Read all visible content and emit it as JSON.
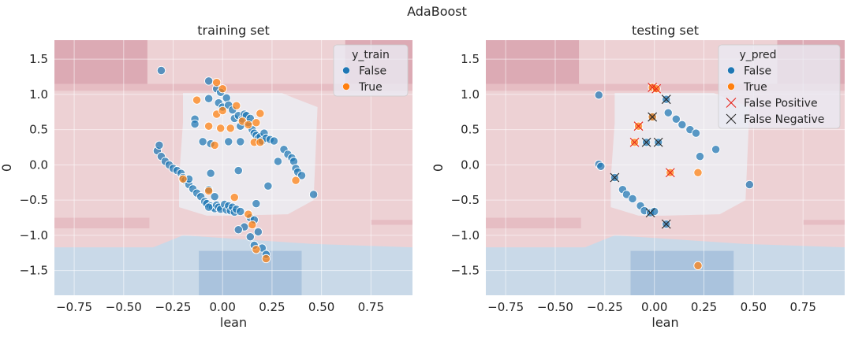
{
  "figure": {
    "suptitle": "AdaBoost"
  },
  "colors": {
    "false": "#1f77b4",
    "true": "#ff7f0e",
    "fp_marker": "#e8231a",
    "fn_marker": "#262626",
    "region_red_light": "#edd1d4",
    "region_red_mid": "#e6bdc3",
    "region_red_dark": "#dcaab4",
    "region_white": "#ece9ee",
    "region_blue_light": "#c9d9e8",
    "region_blue_dark": "#aac3dd",
    "grid": "#ffffff"
  },
  "chart_data": [
    {
      "type": "scatter",
      "title": "training set",
      "xlabel": "lean",
      "ylabel": "0",
      "xlim": [
        -0.85,
        0.96
      ],
      "ylim": [
        -1.85,
        1.77
      ],
      "xticks": [
        -0.75,
        -0.5,
        -0.25,
        0.0,
        0.25,
        0.5,
        0.75
      ],
      "xtick_labels": [
        "−0.75",
        "−0.50",
        "−0.25",
        "0.00",
        "0.25",
        "0.50",
        "0.75"
      ],
      "yticks": [
        -1.5,
        -1.0,
        -0.5,
        0.0,
        0.5,
        1.0,
        1.5
      ],
      "ytick_labels": [
        "−1.5",
        "−1.0",
        "−0.5",
        "0.0",
        "0.5",
        "1.0",
        "1.5"
      ],
      "grid": true,
      "background": "decision regions (red = True side, blue = False side)",
      "legend": {
        "title": "y_train",
        "placement": "upper right",
        "entries": [
          {
            "label": "False",
            "marker": "circle",
            "color_key": "false"
          },
          {
            "label": "True",
            "marker": "circle",
            "color_key": "true"
          }
        ]
      },
      "series": [
        {
          "name": "False",
          "points": [
            [
              -0.31,
              1.34
            ],
            [
              -0.07,
              1.19
            ],
            [
              -0.07,
              0.94
            ],
            [
              -0.03,
              1.08
            ],
            [
              -0.01,
              1.03
            ],
            [
              -0.02,
              0.88
            ],
            [
              0.0,
              0.82
            ],
            [
              0.02,
              0.95
            ],
            [
              0.03,
              0.85
            ],
            [
              0.05,
              0.78
            ],
            [
              0.06,
              0.66
            ],
            [
              0.08,
              0.7
            ],
            [
              0.09,
              0.55
            ],
            [
              0.1,
              0.65
            ],
            [
              0.11,
              0.72
            ],
            [
              0.12,
              0.7
            ],
            [
              0.13,
              0.6
            ],
            [
              0.14,
              0.66
            ],
            [
              0.15,
              0.5
            ],
            [
              0.16,
              0.45
            ],
            [
              0.17,
              0.42
            ],
            [
              0.18,
              0.38
            ],
            [
              0.19,
              0.4
            ],
            [
              0.2,
              0.34
            ],
            [
              0.21,
              0.45
            ],
            [
              0.22,
              0.38
            ],
            [
              0.24,
              0.36
            ],
            [
              0.26,
              0.34
            ],
            [
              0.28,
              0.05
            ],
            [
              0.31,
              0.22
            ],
            [
              0.33,
              0.15
            ],
            [
              0.35,
              0.1
            ],
            [
              0.36,
              0.05
            ],
            [
              0.37,
              -0.05
            ],
            [
              0.38,
              -0.1
            ],
            [
              0.4,
              -0.15
            ],
            [
              0.46,
              -0.42
            ],
            [
              -0.14,
              0.65
            ],
            [
              -0.14,
              0.58
            ],
            [
              -0.1,
              0.33
            ],
            [
              -0.06,
              0.3
            ],
            [
              0.03,
              0.33
            ],
            [
              0.09,
              0.33
            ],
            [
              0.08,
              -0.08
            ],
            [
              0.23,
              -0.3
            ],
            [
              0.17,
              -0.55
            ],
            [
              0.14,
              -0.75
            ],
            [
              0.16,
              -0.78
            ],
            [
              0.11,
              -0.88
            ],
            [
              0.08,
              -0.92
            ],
            [
              0.18,
              -0.95
            ],
            [
              0.14,
              -1.02
            ],
            [
              0.16,
              -1.14
            ],
            [
              0.2,
              -1.18
            ],
            [
              0.22,
              -1.27
            ],
            [
              -0.33,
              0.2
            ],
            [
              -0.32,
              0.28
            ],
            [
              -0.31,
              0.12
            ],
            [
              -0.29,
              0.05
            ],
            [
              -0.27,
              0.0
            ],
            [
              -0.25,
              -0.05
            ],
            [
              -0.23,
              -0.08
            ],
            [
              -0.21,
              -0.12
            ],
            [
              -0.2,
              -0.18
            ],
            [
              -0.19,
              -0.22
            ],
            [
              -0.17,
              -0.28
            ],
            [
              -0.15,
              -0.34
            ],
            [
              -0.13,
              -0.4
            ],
            [
              -0.11,
              -0.45
            ],
            [
              -0.09,
              -0.52
            ],
            [
              -0.08,
              -0.55
            ],
            [
              -0.06,
              -0.58
            ],
            [
              -0.05,
              -0.6
            ],
            [
              -0.04,
              -0.62
            ],
            [
              -0.03,
              -0.57
            ],
            [
              -0.02,
              -0.6
            ],
            [
              -0.01,
              -0.63
            ],
            [
              0.01,
              -0.56
            ],
            [
              0.02,
              -0.64
            ],
            [
              0.03,
              -0.58
            ],
            [
              0.04,
              -0.65
            ],
            [
              0.05,
              -0.6
            ],
            [
              0.06,
              -0.67
            ],
            [
              0.07,
              -0.63
            ],
            [
              0.09,
              -0.66
            ],
            [
              -0.07,
              -0.35
            ],
            [
              -0.04,
              -0.45
            ],
            [
              -0.17,
              -0.2
            ],
            [
              -0.06,
              -0.12
            ],
            [
              -0.07,
              -0.6
            ]
          ]
        },
        {
          "name": "True",
          "points": [
            [
              -0.03,
              1.17
            ],
            [
              0.0,
              1.08
            ],
            [
              -0.13,
              0.92
            ],
            [
              -0.03,
              0.72
            ],
            [
              -0.07,
              0.55
            ],
            [
              0.04,
              0.52
            ],
            [
              0.0,
              0.77
            ],
            [
              0.07,
              0.84
            ],
            [
              0.1,
              0.62
            ],
            [
              0.13,
              0.57
            ],
            [
              0.17,
              0.6
            ],
            [
              0.19,
              0.73
            ],
            [
              0.16,
              0.32
            ],
            [
              0.19,
              0.32
            ],
            [
              -0.01,
              0.52
            ],
            [
              -0.04,
              0.28
            ],
            [
              0.06,
              -0.46
            ],
            [
              0.13,
              -0.7
            ],
            [
              0.15,
              -0.85
            ],
            [
              0.17,
              -1.2
            ],
            [
              0.22,
              -1.33
            ],
            [
              0.37,
              -0.22
            ],
            [
              -0.07,
              -0.37
            ],
            [
              -0.2,
              -0.2
            ]
          ]
        }
      ]
    },
    {
      "type": "scatter",
      "title": "testing set",
      "xlabel": "lean",
      "ylabel": "0",
      "xlim": [
        -0.85,
        0.96
      ],
      "ylim": [
        -1.85,
        1.77
      ],
      "xticks": [
        -0.75,
        -0.5,
        -0.25,
        0.0,
        0.25,
        0.5,
        0.75
      ],
      "xtick_labels": [
        "−0.75",
        "−0.50",
        "−0.25",
        "0.00",
        "0.25",
        "0.50",
        "0.75"
      ],
      "yticks": [
        -1.5,
        -1.0,
        -0.5,
        0.0,
        0.5,
        1.0,
        1.5
      ],
      "ytick_labels": [
        "−1.5",
        "−1.0",
        "−0.5",
        "0.0",
        "0.5",
        "1.0",
        "1.5"
      ],
      "grid": true,
      "background": "decision regions (red = True side, blue = False side)",
      "legend": {
        "title": "y_pred",
        "placement": "upper right",
        "entries": [
          {
            "label": "False",
            "marker": "circle",
            "color_key": "false"
          },
          {
            "label": "True",
            "marker": "circle",
            "color_key": "true"
          },
          {
            "label": "False Positive",
            "marker": "x",
            "color_key": "fp_marker"
          },
          {
            "label": "False Negative",
            "marker": "x",
            "color_key": "fn_marker"
          }
        ]
      },
      "series": [
        {
          "name": "False",
          "points": [
            [
              -0.28,
              0.99
            ],
            [
              0.07,
              0.74
            ],
            [
              0.11,
              0.65
            ],
            [
              0.14,
              0.57
            ],
            [
              0.18,
              0.5
            ],
            [
              0.21,
              0.45
            ],
            [
              0.23,
              0.12
            ],
            [
              0.31,
              0.22
            ],
            [
              0.48,
              -0.28
            ],
            [
              -0.28,
              0.01
            ],
            [
              -0.27,
              -0.02
            ],
            [
              -0.2,
              -0.18
            ],
            [
              -0.16,
              -0.35
            ],
            [
              -0.14,
              -0.42
            ],
            [
              -0.11,
              -0.48
            ],
            [
              -0.07,
              -0.58
            ],
            [
              -0.05,
              -0.65
            ],
            [
              -0.02,
              -0.68
            ],
            [
              0.0,
              -0.66
            ],
            [
              -0.04,
              0.32
            ],
            [
              0.02,
              0.32
            ],
            [
              -0.01,
              0.68
            ],
            [
              0.06,
              0.93
            ],
            [
              0.06,
              -0.84
            ]
          ]
        },
        {
          "name": "True",
          "points": [
            [
              -0.01,
              1.1
            ],
            [
              0.01,
              1.08
            ],
            [
              -0.08,
              0.55
            ],
            [
              -0.1,
              0.32
            ],
            [
              0.08,
              -0.11
            ],
            [
              0.22,
              -0.11
            ],
            [
              0.22,
              -1.43
            ],
            [
              -0.01,
              0.68
            ]
          ]
        }
      ],
      "false_positive": [
        [
          -0.01,
          1.1
        ],
        [
          0.01,
          1.08
        ],
        [
          -0.08,
          0.55
        ],
        [
          -0.1,
          0.32
        ],
        [
          0.08,
          -0.11
        ]
      ],
      "false_negative": [
        [
          0.06,
          0.93
        ],
        [
          -0.01,
          0.68
        ],
        [
          -0.04,
          0.32
        ],
        [
          0.02,
          0.32
        ],
        [
          -0.2,
          -0.18
        ],
        [
          -0.02,
          -0.68
        ],
        [
          0.06,
          -0.84
        ]
      ]
    }
  ]
}
